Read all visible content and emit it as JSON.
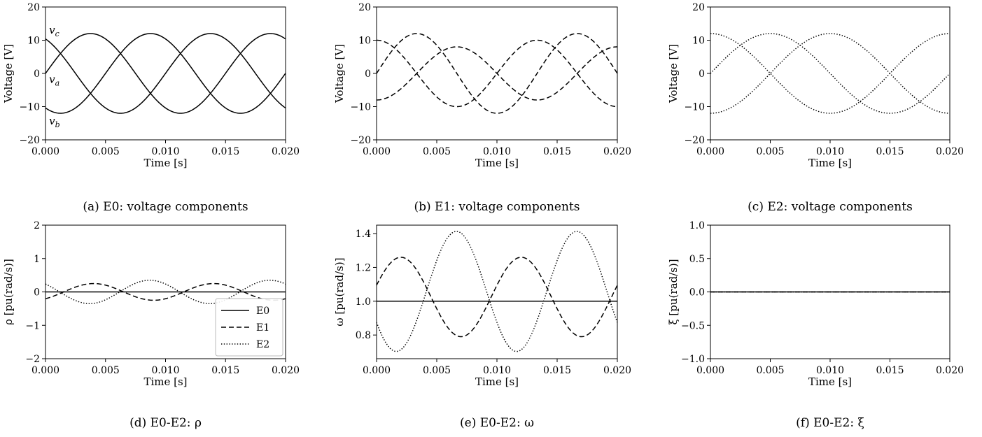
{
  "chart_data": [
    {
      "type": "line",
      "caption": "(a) E0: voltage components",
      "xlabel": "Time [s]",
      "ylabel": "Voltage [V]",
      "xlim": [
        0,
        0.02
      ],
      "ylim": [
        -20,
        20
      ],
      "xticks": [
        0,
        0.005,
        0.01,
        0.015,
        0.02
      ],
      "xtick_labels": [
        "0.000",
        "0.005",
        "0.010",
        "0.015",
        "0.020"
      ],
      "yticks": [
        -20,
        -10,
        0,
        10,
        20
      ],
      "ytick_labels": [
        "−20",
        "−10",
        "0",
        "10",
        "20"
      ],
      "series": [
        {
          "style": "solid",
          "amp": 12,
          "freq": 66.7,
          "phase": 0,
          "offset": 0
        },
        {
          "style": "solid",
          "amp": 12,
          "freq": 66.7,
          "phase": -2.0944,
          "offset": 0
        },
        {
          "style": "solid",
          "amp": 12,
          "freq": 66.7,
          "phase": 2.0944,
          "offset": 0
        }
      ],
      "annotations": [
        {
          "text": "v",
          "sub": "c",
          "x": 0.0003,
          "y": 12
        },
        {
          "text": "v",
          "sub": "a",
          "x": 0.0003,
          "y": -2.8
        },
        {
          "text": "v",
          "sub": "b",
          "x": 0.0003,
          "y": -15.4
        }
      ]
    },
    {
      "type": "line",
      "caption": "(b) E1: voltage components",
      "xlabel": "Time [s]",
      "ylabel": "Voltage [V]",
      "xlim": [
        0,
        0.02
      ],
      "ylim": [
        -20,
        20
      ],
      "xticks": [
        0,
        0.005,
        0.01,
        0.015,
        0.02
      ],
      "xtick_labels": [
        "0.000",
        "0.005",
        "0.010",
        "0.015",
        "0.020"
      ],
      "yticks": [
        -20,
        -10,
        0,
        10,
        20
      ],
      "ytick_labels": [
        "−20",
        "−10",
        "0",
        "10",
        "20"
      ],
      "series": [
        {
          "style": "dashed",
          "amp": 12,
          "freq": 75,
          "phase": 0,
          "offset": 0
        },
        {
          "style": "dashed",
          "amp": 10,
          "freq": 75,
          "phase": 1.5708,
          "offset": 0
        },
        {
          "style": "dashed",
          "amp": 8,
          "freq": 75,
          "phase": -1.5708,
          "offset": 0
        }
      ]
    },
    {
      "type": "line",
      "caption": "(c) E2: voltage components",
      "xlabel": "Time [s]",
      "ylabel": "Voltage [V]",
      "xlim": [
        0,
        0.02
      ],
      "ylim": [
        -20,
        20
      ],
      "xticks": [
        0,
        0.005,
        0.01,
        0.015,
        0.02
      ],
      "xtick_labels": [
        "0.000",
        "0.005",
        "0.010",
        "0.015",
        "0.020"
      ],
      "yticks": [
        -20,
        -10,
        0,
        10,
        20
      ],
      "ytick_labels": [
        "−20",
        "−10",
        "0",
        "10",
        "20"
      ],
      "series": [
        {
          "style": "dotted",
          "amp": 12,
          "freq": 50,
          "phase": 0,
          "offset": 0
        },
        {
          "style": "dotted",
          "amp": 12,
          "freq": 50,
          "phase": 1.5708,
          "offset": 0
        },
        {
          "style": "dotted",
          "amp": 12,
          "freq": 50,
          "phase": -1.5708,
          "offset": 0
        }
      ]
    },
    {
      "type": "line",
      "caption": "(d) E0-E2: ρ",
      "xlabel": "Time [s]",
      "ylabel": "ρ [pu(rad/s)]",
      "xlim": [
        0,
        0.02
      ],
      "ylim": [
        -2,
        2
      ],
      "xticks": [
        0,
        0.005,
        0.01,
        0.015,
        0.02
      ],
      "xtick_labels": [
        "0.000",
        "0.005",
        "0.010",
        "0.015",
        "0.020"
      ],
      "yticks": [
        -2,
        -1,
        0,
        1,
        2
      ],
      "ytick_labels": [
        "−2",
        "−1",
        "0",
        "1",
        "2"
      ],
      "series": [
        {
          "name": "E0",
          "style": "solid",
          "amp": 0,
          "freq": 100,
          "phase": 0,
          "offset": 0
        },
        {
          "name": "E1",
          "style": "dashed",
          "amp": 0.25,
          "freq": 100,
          "phase": -0.95,
          "offset": 0
        },
        {
          "name": "E2",
          "style": "dotted",
          "amp": 0.35,
          "freq": 100,
          "phase": 2.4,
          "offset": 0
        }
      ],
      "legend": {
        "position": "lower-right",
        "entries": [
          "E0",
          "E1",
          "E2"
        ]
      }
    },
    {
      "type": "line",
      "caption": "(e) E0-E2: ω",
      "xlabel": "Time [s]",
      "ylabel": "ω [pu(rad/s)]",
      "xlim": [
        0,
        0.02
      ],
      "ylim": [
        0.66,
        1.45
      ],
      "xticks": [
        0,
        0.005,
        0.01,
        0.015,
        0.02
      ],
      "xtick_labels": [
        "0.000",
        "0.005",
        "0.010",
        "0.015",
        "0.020"
      ],
      "yticks": [
        0.8,
        1.0,
        1.2,
        1.4
      ],
      "ytick_labels": [
        "0.8",
        "1.0",
        "1.2",
        "1.4"
      ],
      "series": [
        {
          "name": "E0",
          "style": "solid",
          "amp": 0,
          "freq": 100,
          "phase": 0,
          "offset": 1.0
        },
        {
          "name": "E1",
          "style": "dashed",
          "amp": 0.235,
          "freq": 100,
          "phase": 0.3,
          "offset": 1.025
        },
        {
          "name": "E2",
          "style": "dotted",
          "amp": 0.355,
          "freq": 100,
          "phase": -2.6,
          "offset": 1.058
        }
      ]
    },
    {
      "type": "line",
      "caption": "(f) E0-E2: ξ",
      "xlabel": "Time [s]",
      "ylabel": "ξ [pu(rad/s)]",
      "xlim": [
        0,
        0.02
      ],
      "ylim": [
        -1,
        1
      ],
      "xticks": [
        0,
        0.005,
        0.01,
        0.015,
        0.02
      ],
      "xtick_labels": [
        "0.000",
        "0.005",
        "0.010",
        "0.015",
        "0.020"
      ],
      "yticks": [
        -1,
        -0.5,
        0,
        0.5,
        1
      ],
      "ytick_labels": [
        "−1.0",
        "−0.5",
        "0.0",
        "0.5",
        "1.0"
      ],
      "series": [
        {
          "name": "E0",
          "style": "solid",
          "amp": 0,
          "freq": 100,
          "phase": 0,
          "offset": 0
        },
        {
          "name": "E1",
          "style": "dashed",
          "amp": 0,
          "freq": 100,
          "phase": 0,
          "offset": 0
        },
        {
          "name": "E2",
          "style": "dotted",
          "amp": 0,
          "freq": 100,
          "phase": 0,
          "offset": 0
        }
      ]
    }
  ]
}
